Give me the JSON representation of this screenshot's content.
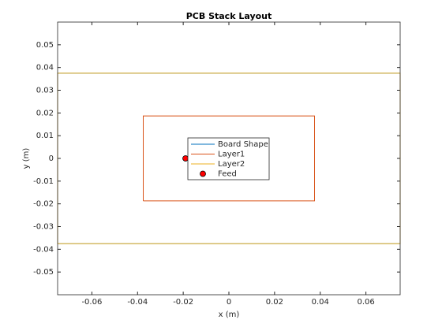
{
  "chart_data": {
    "type": "polygon",
    "title": "PCB Stack Layout",
    "x_label": "x (m)",
    "y_label": "y (m)",
    "xlim": [
      -0.075,
      0.075
    ],
    "ylim": [
      -0.06,
      0.06
    ],
    "xticks": [
      -0.06,
      -0.04,
      -0.02,
      0,
      0.02,
      0.04,
      0.06
    ],
    "yticks": [
      -0.05,
      -0.04,
      -0.03,
      -0.02,
      -0.01,
      0,
      0.01,
      0.02,
      0.03,
      0.04,
      0.05
    ],
    "legend": "center",
    "series": [
      {
        "name": "Board Shape",
        "color": "#0072bd",
        "x": [
          -0.075,
          0.075,
          0.075,
          -0.075,
          -0.075
        ],
        "y": [
          -0.0375,
          -0.0375,
          0.0375,
          0.0375,
          -0.0375
        ]
      },
      {
        "name": "Layer1",
        "color": "#d95319",
        "x": [
          -0.0375,
          0.0375,
          0.0375,
          -0.0375,
          -0.0375
        ],
        "y": [
          -0.0187,
          -0.0187,
          0.0187,
          0.0187,
          -0.0187
        ]
      },
      {
        "name": "Layer2",
        "color": "#edb120",
        "x": [
          -0.075,
          0.075,
          0.075,
          -0.075,
          -0.075
        ],
        "y": [
          -0.0375,
          -0.0375,
          0.0375,
          0.0375,
          -0.0375
        ]
      },
      {
        "name": "Feed",
        "color": "#ff0000",
        "marker": "o",
        "x": [
          -0.019
        ],
        "y": [
          0
        ]
      }
    ]
  }
}
